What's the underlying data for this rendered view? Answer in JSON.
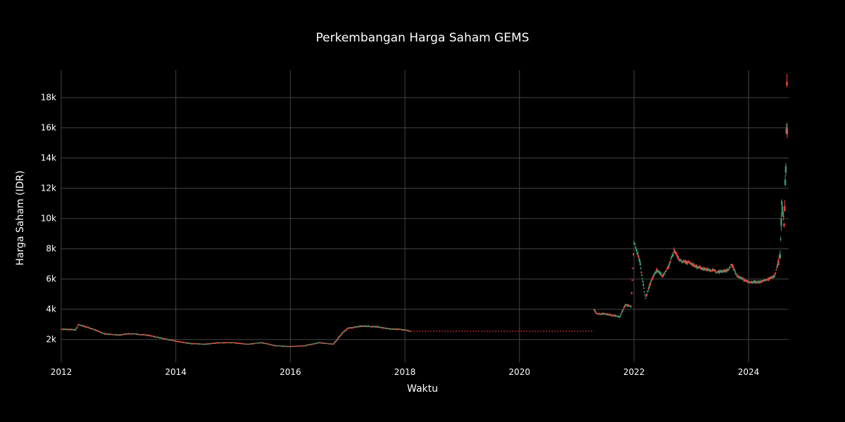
{
  "chart_data": {
    "type": "candlestick",
    "title": "Perkembangan Harga Saham GEMS",
    "xlabel": "Waktu",
    "ylabel": "Harga Saham (IDR)",
    "x_ticks": [
      "2012",
      "2014",
      "2016",
      "2018",
      "2020",
      "2022",
      "2024"
    ],
    "y_ticks": [
      "2k",
      "4k",
      "6k",
      "8k",
      "10k",
      "12k",
      "14k",
      "16k",
      "18k"
    ],
    "x_range": [
      2012.0,
      2024.7
    ],
    "y_range": [
      500,
      19800
    ],
    "grid": true,
    "colors": {
      "increasing": "#3d9970",
      "decreasing": "#ff4136",
      "background": "#000000",
      "grid": "#444444",
      "text": "#ffffff"
    },
    "series": [
      {
        "points": [
          [
            2012.0,
            2700
          ],
          [
            2012.25,
            2650
          ],
          [
            2012.3,
            3000
          ],
          [
            2012.55,
            2700
          ],
          [
            2012.75,
            2400
          ],
          [
            2013.0,
            2300
          ],
          [
            2013.2,
            2400
          ],
          [
            2013.5,
            2300
          ],
          [
            2013.75,
            2100
          ],
          [
            2014.0,
            1900
          ],
          [
            2014.25,
            1750
          ],
          [
            2014.5,
            1700
          ],
          [
            2014.75,
            1800
          ],
          [
            2015.0,
            1800
          ],
          [
            2015.25,
            1700
          ],
          [
            2015.5,
            1800
          ],
          [
            2015.75,
            1600
          ],
          [
            2016.0,
            1550
          ],
          [
            2016.25,
            1600
          ],
          [
            2016.5,
            1800
          ],
          [
            2016.75,
            1700
          ],
          [
            2016.9,
            2400
          ],
          [
            2017.0,
            2750
          ],
          [
            2017.25,
            2900
          ],
          [
            2017.5,
            2850
          ],
          [
            2017.75,
            2700
          ],
          [
            2018.0,
            2650
          ],
          [
            2018.1,
            2550
          ]
        ]
      },
      {
        "points": [
          [
            2021.3,
            4000
          ],
          [
            2021.35,
            3700
          ],
          [
            2021.5,
            3700
          ],
          [
            2021.75,
            3500
          ],
          [
            2021.85,
            4300
          ],
          [
            2021.95,
            4200
          ],
          [
            2022.0,
            8500
          ],
          [
            2022.1,
            7200
          ],
          [
            2022.2,
            4700
          ],
          [
            2022.3,
            5900
          ],
          [
            2022.4,
            6600
          ],
          [
            2022.5,
            6200
          ],
          [
            2022.6,
            6800
          ],
          [
            2022.7,
            7900
          ],
          [
            2022.8,
            7200
          ],
          [
            2022.95,
            7100
          ],
          [
            2023.1,
            6800
          ],
          [
            2023.3,
            6600
          ],
          [
            2023.5,
            6500
          ],
          [
            2023.65,
            6600
          ],
          [
            2023.7,
            7000
          ],
          [
            2023.8,
            6200
          ],
          [
            2023.9,
            6000
          ],
          [
            2024.0,
            5800
          ],
          [
            2024.2,
            5800
          ],
          [
            2024.35,
            6000
          ],
          [
            2024.45,
            6200
          ],
          [
            2024.5,
            6800
          ],
          [
            2024.55,
            7500
          ],
          [
            2024.58,
            11000
          ],
          [
            2024.62,
            9500
          ],
          [
            2024.65,
            13500
          ],
          [
            2024.67,
            18500
          ],
          [
            2024.68,
            13200
          ]
        ]
      }
    ],
    "gap": {
      "x": [
        2018.1,
        2021.3
      ],
      "y": 2550
    }
  }
}
